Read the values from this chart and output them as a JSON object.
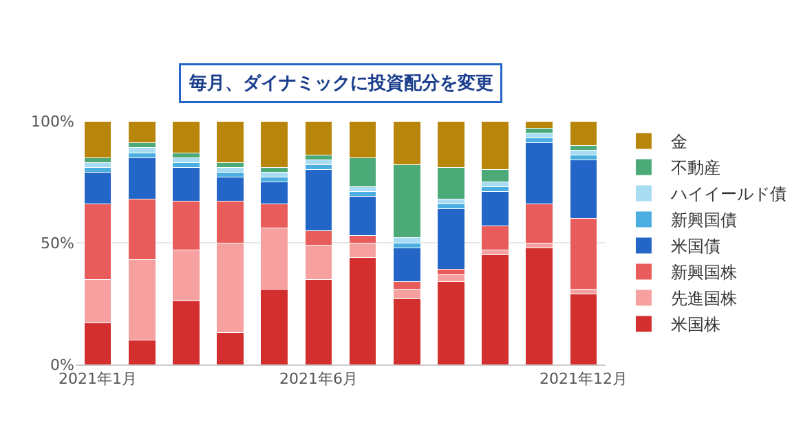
{
  "chart_data": {
    "type": "bar",
    "title": "毎月、ダイナミックに投資配分を変更",
    "stacked": true,
    "categories": [
      "2021年1月",
      null,
      null,
      null,
      null,
      "2021年6月",
      null,
      null,
      null,
      null,
      null,
      "2021年12月"
    ],
    "series": [
      {
        "name": "米国株",
        "color": "#d32f2f",
        "values": [
          17,
          10,
          26,
          13,
          31,
          35,
          44,
          27,
          34,
          45,
          48,
          29
        ]
      },
      {
        "name": "先進国株",
        "color": "#f6a0a0",
        "values": [
          18,
          33,
          21,
          37,
          25,
          14,
          6,
          4,
          3,
          2,
          2,
          2
        ]
      },
      {
        "name": "新興国株",
        "color": "#e85c5c",
        "values": [
          31,
          25,
          20,
          17,
          10,
          6,
          3,
          3,
          2,
          10,
          16,
          29
        ]
      },
      {
        "name": "米国債",
        "color": "#2466c8",
        "values": [
          13,
          17,
          14,
          10,
          9,
          25,
          16,
          14,
          25,
          14,
          25,
          24
        ]
      },
      {
        "name": "新興国債",
        "color": "#4baee0",
        "values": [
          2,
          2,
          2,
          2,
          2,
          2,
          2,
          2,
          2,
          2,
          2,
          2
        ]
      },
      {
        "name": "ハイイールド債",
        "color": "#a8dcf2",
        "values": [
          2,
          2,
          2,
          2,
          2,
          2,
          2,
          2,
          2,
          2,
          2,
          2
        ]
      },
      {
        "name": "不動産",
        "color": "#4caa78",
        "values": [
          2,
          2,
          2,
          2,
          2,
          2,
          12,
          30,
          13,
          5,
          2,
          2
        ]
      },
      {
        "name": "金",
        "color": "#b8860b",
        "values": [
          15,
          9,
          13,
          17,
          19,
          14,
          15,
          18,
          19,
          20,
          3,
          10
        ]
      }
    ],
    "ylim": [
      0,
      100
    ],
    "yticks": [
      {
        "value": 0,
        "label": "0%"
      },
      {
        "value": 50,
        "label": "50%"
      },
      {
        "value": 100,
        "label": "100%"
      }
    ],
    "grid": "y",
    "legend": "right"
  }
}
